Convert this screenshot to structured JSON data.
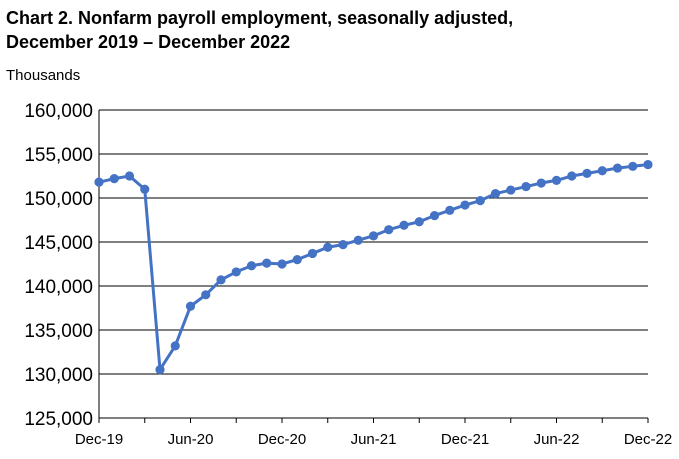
{
  "title_line1": "Chart 2. Nonfarm payroll employment, seasonally adjusted,",
  "title_line2": "December 2019 – December 2022",
  "chart_data": {
    "type": "line",
    "title": "Chart 2. Nonfarm payroll employment, seasonally adjusted, December 2019 – December 2022",
    "ylabel": "Thousands",
    "xlabel": "",
    "ylim": [
      125000,
      160000
    ],
    "yticks": [
      "125,000",
      "130,000",
      "135,000",
      "140,000",
      "145,000",
      "150,000",
      "155,000",
      "160,000"
    ],
    "xtick_labels": [
      "Dec-19",
      "Jun-20",
      "Dec-20",
      "Jun-21",
      "Dec-21",
      "Jun-22",
      "Dec-22"
    ],
    "grid": true,
    "color": "#4472C4",
    "x": [
      "Dec-19",
      "Jan-20",
      "Feb-20",
      "Mar-20",
      "Apr-20",
      "May-20",
      "Jun-20",
      "Jul-20",
      "Aug-20",
      "Sep-20",
      "Oct-20",
      "Nov-20",
      "Dec-20",
      "Jan-21",
      "Feb-21",
      "Mar-21",
      "Apr-21",
      "May-21",
      "Jun-21",
      "Jul-21",
      "Aug-21",
      "Sep-21",
      "Oct-21",
      "Nov-21",
      "Dec-21",
      "Jan-22",
      "Feb-22",
      "Mar-22",
      "Apr-22",
      "May-22",
      "Jun-22",
      "Jul-22",
      "Aug-22",
      "Sep-22",
      "Oct-22",
      "Nov-22",
      "Dec-22"
    ],
    "values": [
      151800,
      152200,
      152500,
      151000,
      130500,
      133200,
      137700,
      139000,
      140700,
      141600,
      142300,
      142600,
      142500,
      143000,
      143700,
      144400,
      144700,
      145200,
      145700,
      146400,
      146900,
      147300,
      148000,
      148600,
      149200,
      149700,
      150500,
      150900,
      151300,
      151700,
      152000,
      152500,
      152800,
      153100,
      153400,
      153600,
      153800
    ]
  }
}
